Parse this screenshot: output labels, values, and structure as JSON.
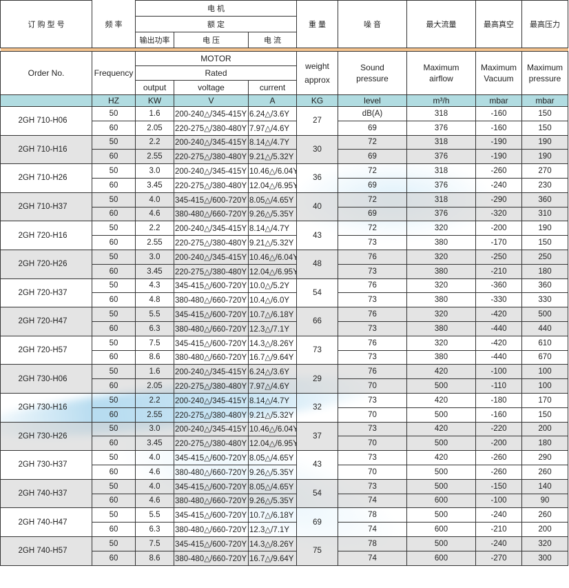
{
  "header_cn": {
    "order_no": "订 购 型 号",
    "frequency": "频 率",
    "motor": "电   机",
    "rated": "额 定",
    "output": "输出功率",
    "voltage": "电   压",
    "current": "电   流",
    "weight": "重 量",
    "noise": "噪 音",
    "airflow": "最大流量",
    "vacuum": "最高真空",
    "pressure": "最高压力"
  },
  "header_en": {
    "order_no": "Order No.",
    "frequency": "Frequency",
    "motor": "MOTOR",
    "rated": "Rated",
    "output": "output",
    "voltage": "voltage",
    "current": "current",
    "weight": "weight approx",
    "noise": "Sound pressure",
    "airflow": "Maximum airflow",
    "vacuum": "Maximum Vacuum",
    "pressure": "Maximum pressure"
  },
  "units": [
    "HZ",
    "KW",
    "V",
    "A",
    "KG",
    "level",
    "m³/h",
    "mbar",
    "mbar"
  ],
  "colors": {
    "orange_bar": "#f6c48e",
    "units_row": "#a8d8de",
    "gray_row": "#dedede"
  },
  "groups": [
    {
      "model": "2GH 710-H06",
      "weight": "27",
      "rows": [
        [
          "50",
          "1.6",
          "200-240△/345-415Y",
          "6.24△/3.6Y",
          "dB(A)",
          "318",
          "-160",
          "150"
        ],
        [
          "60",
          "2.05",
          "220-275△/380-480Y",
          "7.97△/4.6Y",
          "69",
          "376",
          "-160",
          "150"
        ]
      ]
    },
    {
      "model": "2GH 710-H16",
      "weight": "30",
      "rows": [
        [
          "50",
          "2.2",
          "200-240△/345-415Y",
          "8.14△/4.7Y",
          "72",
          "318",
          "-190",
          "190"
        ],
        [
          "60",
          "2.55",
          "220-275△/380-480Y",
          "9.21△/5.32Y",
          "69",
          "376",
          "-190",
          "190"
        ]
      ]
    },
    {
      "model": "2GH 710-H26",
      "weight": "36",
      "rows": [
        [
          "50",
          "3.0",
          "200-240△/345-415Y",
          "10.46△/6.04Y",
          "72",
          "318",
          "-260",
          "270"
        ],
        [
          "60",
          "3.45",
          "220-275△/380-480Y",
          "12.04△/6.95Y",
          "69",
          "376",
          "-240",
          "230"
        ]
      ]
    },
    {
      "model": "2GH 710-H37",
      "weight": "40",
      "rows": [
        [
          "50",
          "4.0",
          "345-415△/600-720Y",
          "8.05△/4.65Y",
          "72",
          "318",
          "-290",
          "360"
        ],
        [
          "60",
          "4.6",
          "380-480△/660-720Y",
          "9.26△/5.35Y",
          "69",
          "376",
          "-320",
          "310"
        ]
      ]
    },
    {
      "model": "2GH 720-H16",
      "weight": "43",
      "rows": [
        [
          "50",
          "2.2",
          "200-240△/345-415Y",
          "8.14△/4.7Y",
          "72",
          "320",
          "-200",
          "190"
        ],
        [
          "60",
          "2.55",
          "220-275△/380-480Y",
          "9.21△/5.32Y",
          "73",
          "380",
          "-170",
          "150"
        ]
      ]
    },
    {
      "model": "2GH 720-H26",
      "weight": "48",
      "rows": [
        [
          "50",
          "3.0",
          "200-240△/345-415Y",
          "10.46△/6.04Y",
          "76",
          "320",
          "-250",
          "250"
        ],
        [
          "60",
          "3.45",
          "220-275△/380-480Y",
          "12.04△/6.95Y",
          "73",
          "380",
          "-210",
          "180"
        ]
      ]
    },
    {
      "model": "2GH 720-H37",
      "weight": "54",
      "rows": [
        [
          "50",
          "4.3",
          "345-415△/600-720Y",
          "10.0△/5.2Y",
          "76",
          "320",
          "-360",
          "360"
        ],
        [
          "60",
          "4.8",
          "380-480△/660-720Y",
          "10.4△/6.0Y",
          "73",
          "380",
          "-330",
          "330"
        ]
      ]
    },
    {
      "model": "2GH 720-H47",
      "weight": "66",
      "rows": [
        [
          "50",
          "5.5",
          "345-415△/600-720Y",
          "10.7△/6.18Y",
          "76",
          "320",
          "-420",
          "500"
        ],
        [
          "60",
          "6.3",
          "380-480△/660-720Y",
          "12.3△/7.1Y",
          "73",
          "380",
          "-440",
          "440"
        ]
      ]
    },
    {
      "model": "2GH 720-H57",
      "weight": "73",
      "rows": [
        [
          "50",
          "7.5",
          "345-415△/600-720Y",
          "14.3△/8.26Y",
          "76",
          "320",
          "-420",
          "610"
        ],
        [
          "60",
          "8.6",
          "380-480△/660-720Y",
          "16.7△/9.64Y",
          "73",
          "380",
          "-440",
          "670"
        ]
      ]
    },
    {
      "model": "2GH 730-H06",
      "weight": "29",
      "rows": [
        [
          "50",
          "1.6",
          "200-240△/345-415Y",
          "6.24△/3.6Y",
          "76",
          "420",
          "-100",
          "100"
        ],
        [
          "60",
          "2.05",
          "220-275△/380-480Y",
          "7.97△/4.6Y",
          "70",
          "500",
          "-110",
          "100"
        ]
      ]
    },
    {
      "model": "2GH 730-H16",
      "weight": "32",
      "rows": [
        [
          "50",
          "2.2",
          "200-240△/345-415Y",
          "8.14△/4.7Y",
          "73",
          "420",
          "-180",
          "170"
        ],
        [
          "60",
          "2.55",
          "220-275△/380-480Y",
          "9.21△/5.32Y",
          "70",
          "500",
          "-160",
          "150"
        ]
      ]
    },
    {
      "model": "2GH 730-H26",
      "weight": "37",
      "rows": [
        [
          "50",
          "3.0",
          "200-240△/345-415Y",
          "10.46△/6.04Y",
          "73",
          "420",
          "-220",
          "200"
        ],
        [
          "60",
          "3.45",
          "220-275△/380-480Y",
          "12.04△/6.95Y",
          "70",
          "500",
          "-200",
          "180"
        ]
      ]
    },
    {
      "model": "2GH 730-H37",
      "weight": "43",
      "rows": [
        [
          "50",
          "4.0",
          "345-415△/600-720Y",
          "8.05△/4.65Y",
          "73",
          "420",
          "-260",
          "290"
        ],
        [
          "60",
          "4.6",
          "380-480△/660-720Y",
          "9.26△/5.35Y",
          "70",
          "500",
          "-260",
          "260"
        ]
      ]
    },
    {
      "model": "2GH 740-H37",
      "weight": "54",
      "rows": [
        [
          "50",
          "4.0",
          "345-415△/600-720Y",
          "8.05△/4.65Y",
          "73",
          "500",
          "-150",
          "140"
        ],
        [
          "60",
          "4.6",
          "380-480△/660-720Y",
          "9.26△/5.35Y",
          "74",
          "600",
          "-100",
          "90"
        ]
      ]
    },
    {
      "model": "2GH 740-H47",
      "weight": "69",
      "rows": [
        [
          "50",
          "5.5",
          "345-415△/600-720Y",
          "10.7△/6.18Y",
          "78",
          "500",
          "-240",
          "260"
        ],
        [
          "60",
          "6.3",
          "380-480△/660-720Y",
          "12.3△/7.1Y",
          "74",
          "600",
          "-210",
          "200"
        ]
      ]
    },
    {
      "model": "2GH 740-H57",
      "weight": "75",
      "rows": [
        [
          "50",
          "7.5",
          "345-415△/600-720Y",
          "14.3△/8.26Y",
          "78",
          "500",
          "-240",
          "320"
        ],
        [
          "60",
          "8.6",
          "380-480△/660-720Y",
          "16.7△/9.64Y",
          "74",
          "600",
          "-270",
          "300"
        ]
      ]
    }
  ]
}
